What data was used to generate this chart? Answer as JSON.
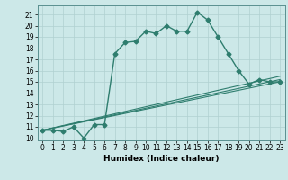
{
  "xlabel": "Humidex (Indice chaleur)",
  "bg_color": "#cce8e8",
  "line_color": "#2e7d6e",
  "grid_color": "#b0d0d0",
  "xlim": [
    -0.5,
    23.5
  ],
  "ylim": [
    9.8,
    21.8
  ],
  "yticks": [
    10,
    11,
    12,
    13,
    14,
    15,
    16,
    17,
    18,
    19,
    20,
    21
  ],
  "xticks": [
    0,
    1,
    2,
    3,
    4,
    5,
    6,
    7,
    8,
    9,
    10,
    11,
    12,
    13,
    14,
    15,
    16,
    17,
    18,
    19,
    20,
    21,
    22,
    23
  ],
  "main_series": {
    "x": [
      0,
      1,
      2,
      3,
      4,
      5,
      6,
      7,
      8,
      9,
      10,
      11,
      12,
      13,
      14,
      15,
      16,
      17,
      18,
      19,
      20,
      21,
      22,
      23
    ],
    "y": [
      10.7,
      10.7,
      10.6,
      11.0,
      10.0,
      11.2,
      11.2,
      17.5,
      18.5,
      18.6,
      19.5,
      19.3,
      20.0,
      19.5,
      19.5,
      21.2,
      20.5,
      19.0,
      17.5,
      16.0,
      14.8,
      15.2,
      15.0,
      15.0
    ]
  },
  "straight_lines": [
    {
      "x": [
        0,
        23
      ],
      "y": [
        10.7,
        15.5
      ]
    },
    {
      "x": [
        0,
        23
      ],
      "y": [
        10.7,
        15.2
      ]
    },
    {
      "x": [
        0,
        23
      ],
      "y": [
        10.7,
        15.0
      ]
    }
  ],
  "tick_fontsize": 5.5,
  "xlabel_fontsize": 6.5
}
